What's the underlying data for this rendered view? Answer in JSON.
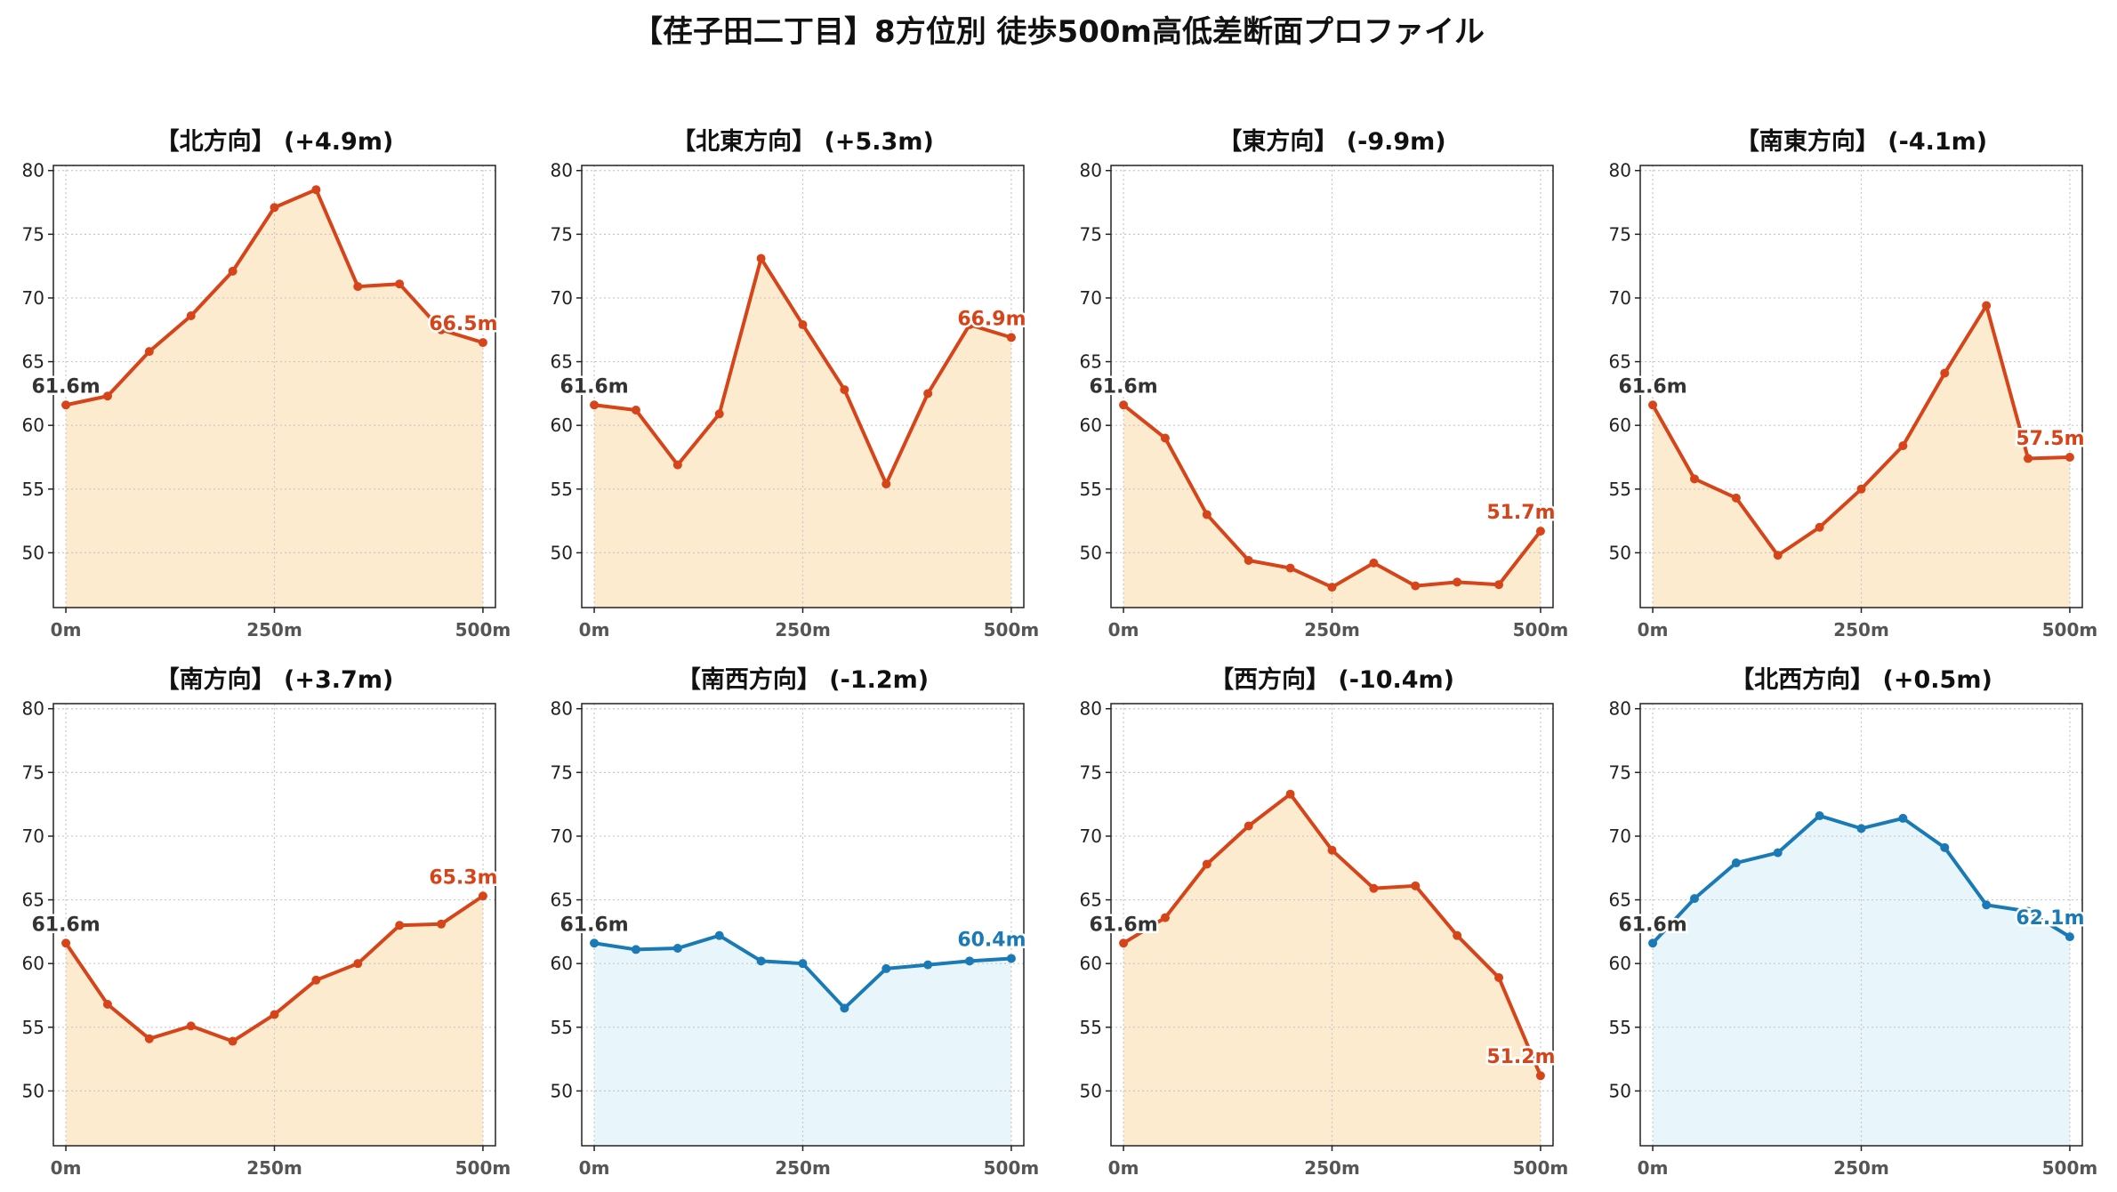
{
  "figure_title": "【荏子田二丁目】8方位別 徒歩500m高低差断面プロファイル",
  "colors": {
    "up_line": "#d64419",
    "up_fill": "#fdebd0",
    "down_line": "#1a7ab5",
    "down_fill": "#e8f5fb",
    "grid": "#c8c8c8",
    "start_label": "#333333"
  },
  "chart_data": [
    {
      "type": "area",
      "title": "【北方向】 (+4.9m)",
      "trend": "up",
      "x": [
        0,
        50,
        100,
        150,
        200,
        250,
        300,
        350,
        400,
        450,
        500
      ],
      "y": [
        61.6,
        62.3,
        65.8,
        68.6,
        72.1,
        77.1,
        78.5,
        70.9,
        71.1,
        67.5,
        66.5
      ],
      "start_label": "61.6m",
      "end_label": "66.5m",
      "xticks": [
        0,
        250,
        500
      ],
      "xtick_labels": [
        "0m",
        "250m",
        "500m"
      ],
      "yticks": [
        50,
        55,
        60,
        65,
        70,
        75,
        80
      ],
      "ylim": [
        45.7,
        80.4
      ],
      "xlim": [
        -15,
        515
      ],
      "grid": true
    },
    {
      "type": "area",
      "title": "【北東方向】 (+5.3m)",
      "trend": "up",
      "x": [
        0,
        50,
        100,
        150,
        200,
        250,
        300,
        350,
        400,
        450,
        500
      ],
      "y": [
        61.6,
        61.2,
        56.9,
        60.9,
        73.1,
        67.9,
        62.8,
        55.4,
        62.5,
        67.9,
        66.9
      ],
      "start_label": "61.6m",
      "end_label": "66.9m",
      "xticks": [
        0,
        250,
        500
      ],
      "xtick_labels": [
        "0m",
        "250m",
        "500m"
      ],
      "yticks": [
        50,
        55,
        60,
        65,
        70,
        75,
        80
      ],
      "ylim": [
        45.7,
        80.4
      ],
      "xlim": [
        -15,
        515
      ],
      "grid": true
    },
    {
      "type": "area",
      "title": "【東方向】 (-9.9m)",
      "trend": "up",
      "x": [
        0,
        50,
        100,
        150,
        200,
        250,
        300,
        350,
        400,
        450,
        500
      ],
      "y": [
        61.6,
        59.0,
        53.0,
        49.4,
        48.8,
        47.3,
        49.2,
        47.4,
        47.7,
        47.5,
        51.7
      ],
      "start_label": "61.6m",
      "end_label": "51.7m",
      "xticks": [
        0,
        250,
        500
      ],
      "xtick_labels": [
        "0m",
        "250m",
        "500m"
      ],
      "yticks": [
        50,
        55,
        60,
        65,
        70,
        75,
        80
      ],
      "ylim": [
        45.7,
        80.4
      ],
      "xlim": [
        -15,
        515
      ],
      "grid": true
    },
    {
      "type": "area",
      "title": "【南東方向】 (-4.1m)",
      "trend": "up",
      "x": [
        0,
        50,
        100,
        150,
        200,
        250,
        300,
        350,
        400,
        450,
        500
      ],
      "y": [
        61.6,
        55.8,
        54.3,
        49.8,
        52.0,
        55.0,
        58.4,
        64.1,
        69.4,
        57.4,
        57.5
      ],
      "start_label": "61.6m",
      "end_label": "57.5m",
      "xticks": [
        0,
        250,
        500
      ],
      "xtick_labels": [
        "0m",
        "250m",
        "500m"
      ],
      "yticks": [
        50,
        55,
        60,
        65,
        70,
        75,
        80
      ],
      "ylim": [
        45.7,
        80.4
      ],
      "xlim": [
        -15,
        515
      ],
      "grid": true
    },
    {
      "type": "area",
      "title": "【南方向】 (+3.7m)",
      "trend": "up",
      "x": [
        0,
        50,
        100,
        150,
        200,
        250,
        300,
        350,
        400,
        450,
        500
      ],
      "y": [
        61.6,
        56.8,
        54.1,
        55.1,
        53.9,
        56.0,
        58.7,
        60.0,
        63.0,
        63.1,
        65.3
      ],
      "start_label": "61.6m",
      "end_label": "65.3m",
      "xticks": [
        0,
        250,
        500
      ],
      "xtick_labels": [
        "0m",
        "250m",
        "500m"
      ],
      "yticks": [
        50,
        55,
        60,
        65,
        70,
        75,
        80
      ],
      "ylim": [
        45.7,
        80.4
      ],
      "xlim": [
        -15,
        515
      ],
      "grid": true
    },
    {
      "type": "area",
      "title": "【南西方向】 (-1.2m)",
      "trend": "down",
      "x": [
        0,
        50,
        100,
        150,
        200,
        250,
        300,
        350,
        400,
        450,
        500
      ],
      "y": [
        61.6,
        61.1,
        61.2,
        62.2,
        60.2,
        60.0,
        56.5,
        59.6,
        59.9,
        60.2,
        60.4
      ],
      "start_label": "61.6m",
      "end_label": "60.4m",
      "xticks": [
        0,
        250,
        500
      ],
      "xtick_labels": [
        "0m",
        "250m",
        "500m"
      ],
      "yticks": [
        50,
        55,
        60,
        65,
        70,
        75,
        80
      ],
      "ylim": [
        45.7,
        80.4
      ],
      "xlim": [
        -15,
        515
      ],
      "grid": true
    },
    {
      "type": "area",
      "title": "【西方向】 (-10.4m)",
      "trend": "up",
      "x": [
        0,
        50,
        100,
        150,
        200,
        250,
        300,
        350,
        400,
        450,
        500
      ],
      "y": [
        61.6,
        63.6,
        67.8,
        70.8,
        73.3,
        68.9,
        65.9,
        66.1,
        62.2,
        58.9,
        51.2
      ],
      "start_label": "61.6m",
      "end_label": "51.2m",
      "xticks": [
        0,
        250,
        500
      ],
      "xtick_labels": [
        "0m",
        "250m",
        "500m"
      ],
      "yticks": [
        50,
        55,
        60,
        65,
        70,
        75,
        80
      ],
      "ylim": [
        45.7,
        80.4
      ],
      "xlim": [
        -15,
        515
      ],
      "grid": true
    },
    {
      "type": "area",
      "title": "【北西方向】 (+0.5m)",
      "trend": "down",
      "x": [
        0,
        50,
        100,
        150,
        200,
        250,
        300,
        350,
        400,
        450,
        500
      ],
      "y": [
        61.6,
        65.1,
        67.9,
        68.7,
        71.6,
        70.6,
        71.4,
        69.1,
        64.6,
        64.1,
        62.1
      ],
      "start_label": "61.6m",
      "end_label": "62.1m",
      "xticks": [
        0,
        250,
        500
      ],
      "xtick_labels": [
        "0m",
        "250m",
        "500m"
      ],
      "yticks": [
        50,
        55,
        60,
        65,
        70,
        75,
        80
      ],
      "ylim": [
        45.7,
        80.4
      ],
      "xlim": [
        -15,
        515
      ],
      "grid": true
    }
  ]
}
